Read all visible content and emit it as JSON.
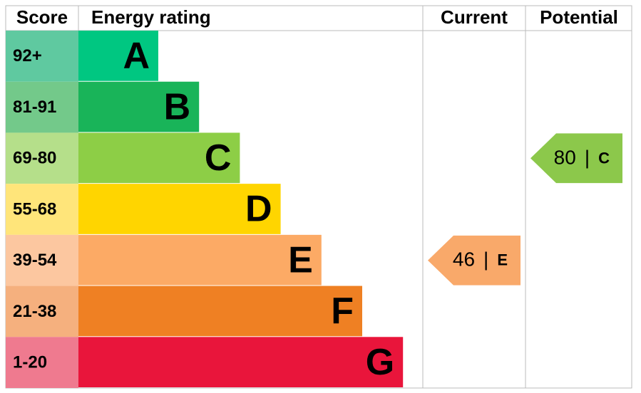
{
  "chart_data": {
    "type": "epc",
    "headers": {
      "score": "Score",
      "rating": "Energy rating",
      "current": "Current",
      "potential": "Potential"
    },
    "bands": [
      {
        "score": "92+",
        "letter": "A",
        "color": "#00c781",
        "score_color": "#5fc9a0"
      },
      {
        "score": "81-91",
        "letter": "B",
        "color": "#19b459",
        "score_color": "#73c98a"
      },
      {
        "score": "69-80",
        "letter": "C",
        "color": "#8dce46",
        "score_color": "#b5df8a"
      },
      {
        "score": "55-68",
        "letter": "D",
        "color": "#ffd500",
        "score_color": "#ffe57a"
      },
      {
        "score": "39-54",
        "letter": "E",
        "color": "#fcaa65",
        "score_color": "#fcc7a0"
      },
      {
        "score": "21-38",
        "letter": "F",
        "color": "#ef8023",
        "score_color": "#f5b07e"
      },
      {
        "score": "1-20",
        "letter": "G",
        "color": "#e9153b",
        "score_color": "#ef7a8f"
      }
    ],
    "separator": "|",
    "current": {
      "value": 46,
      "letter": "E",
      "color": "#f9a96a"
    },
    "potential": {
      "value": 80,
      "letter": "C",
      "color": "#8cc84b"
    }
  }
}
